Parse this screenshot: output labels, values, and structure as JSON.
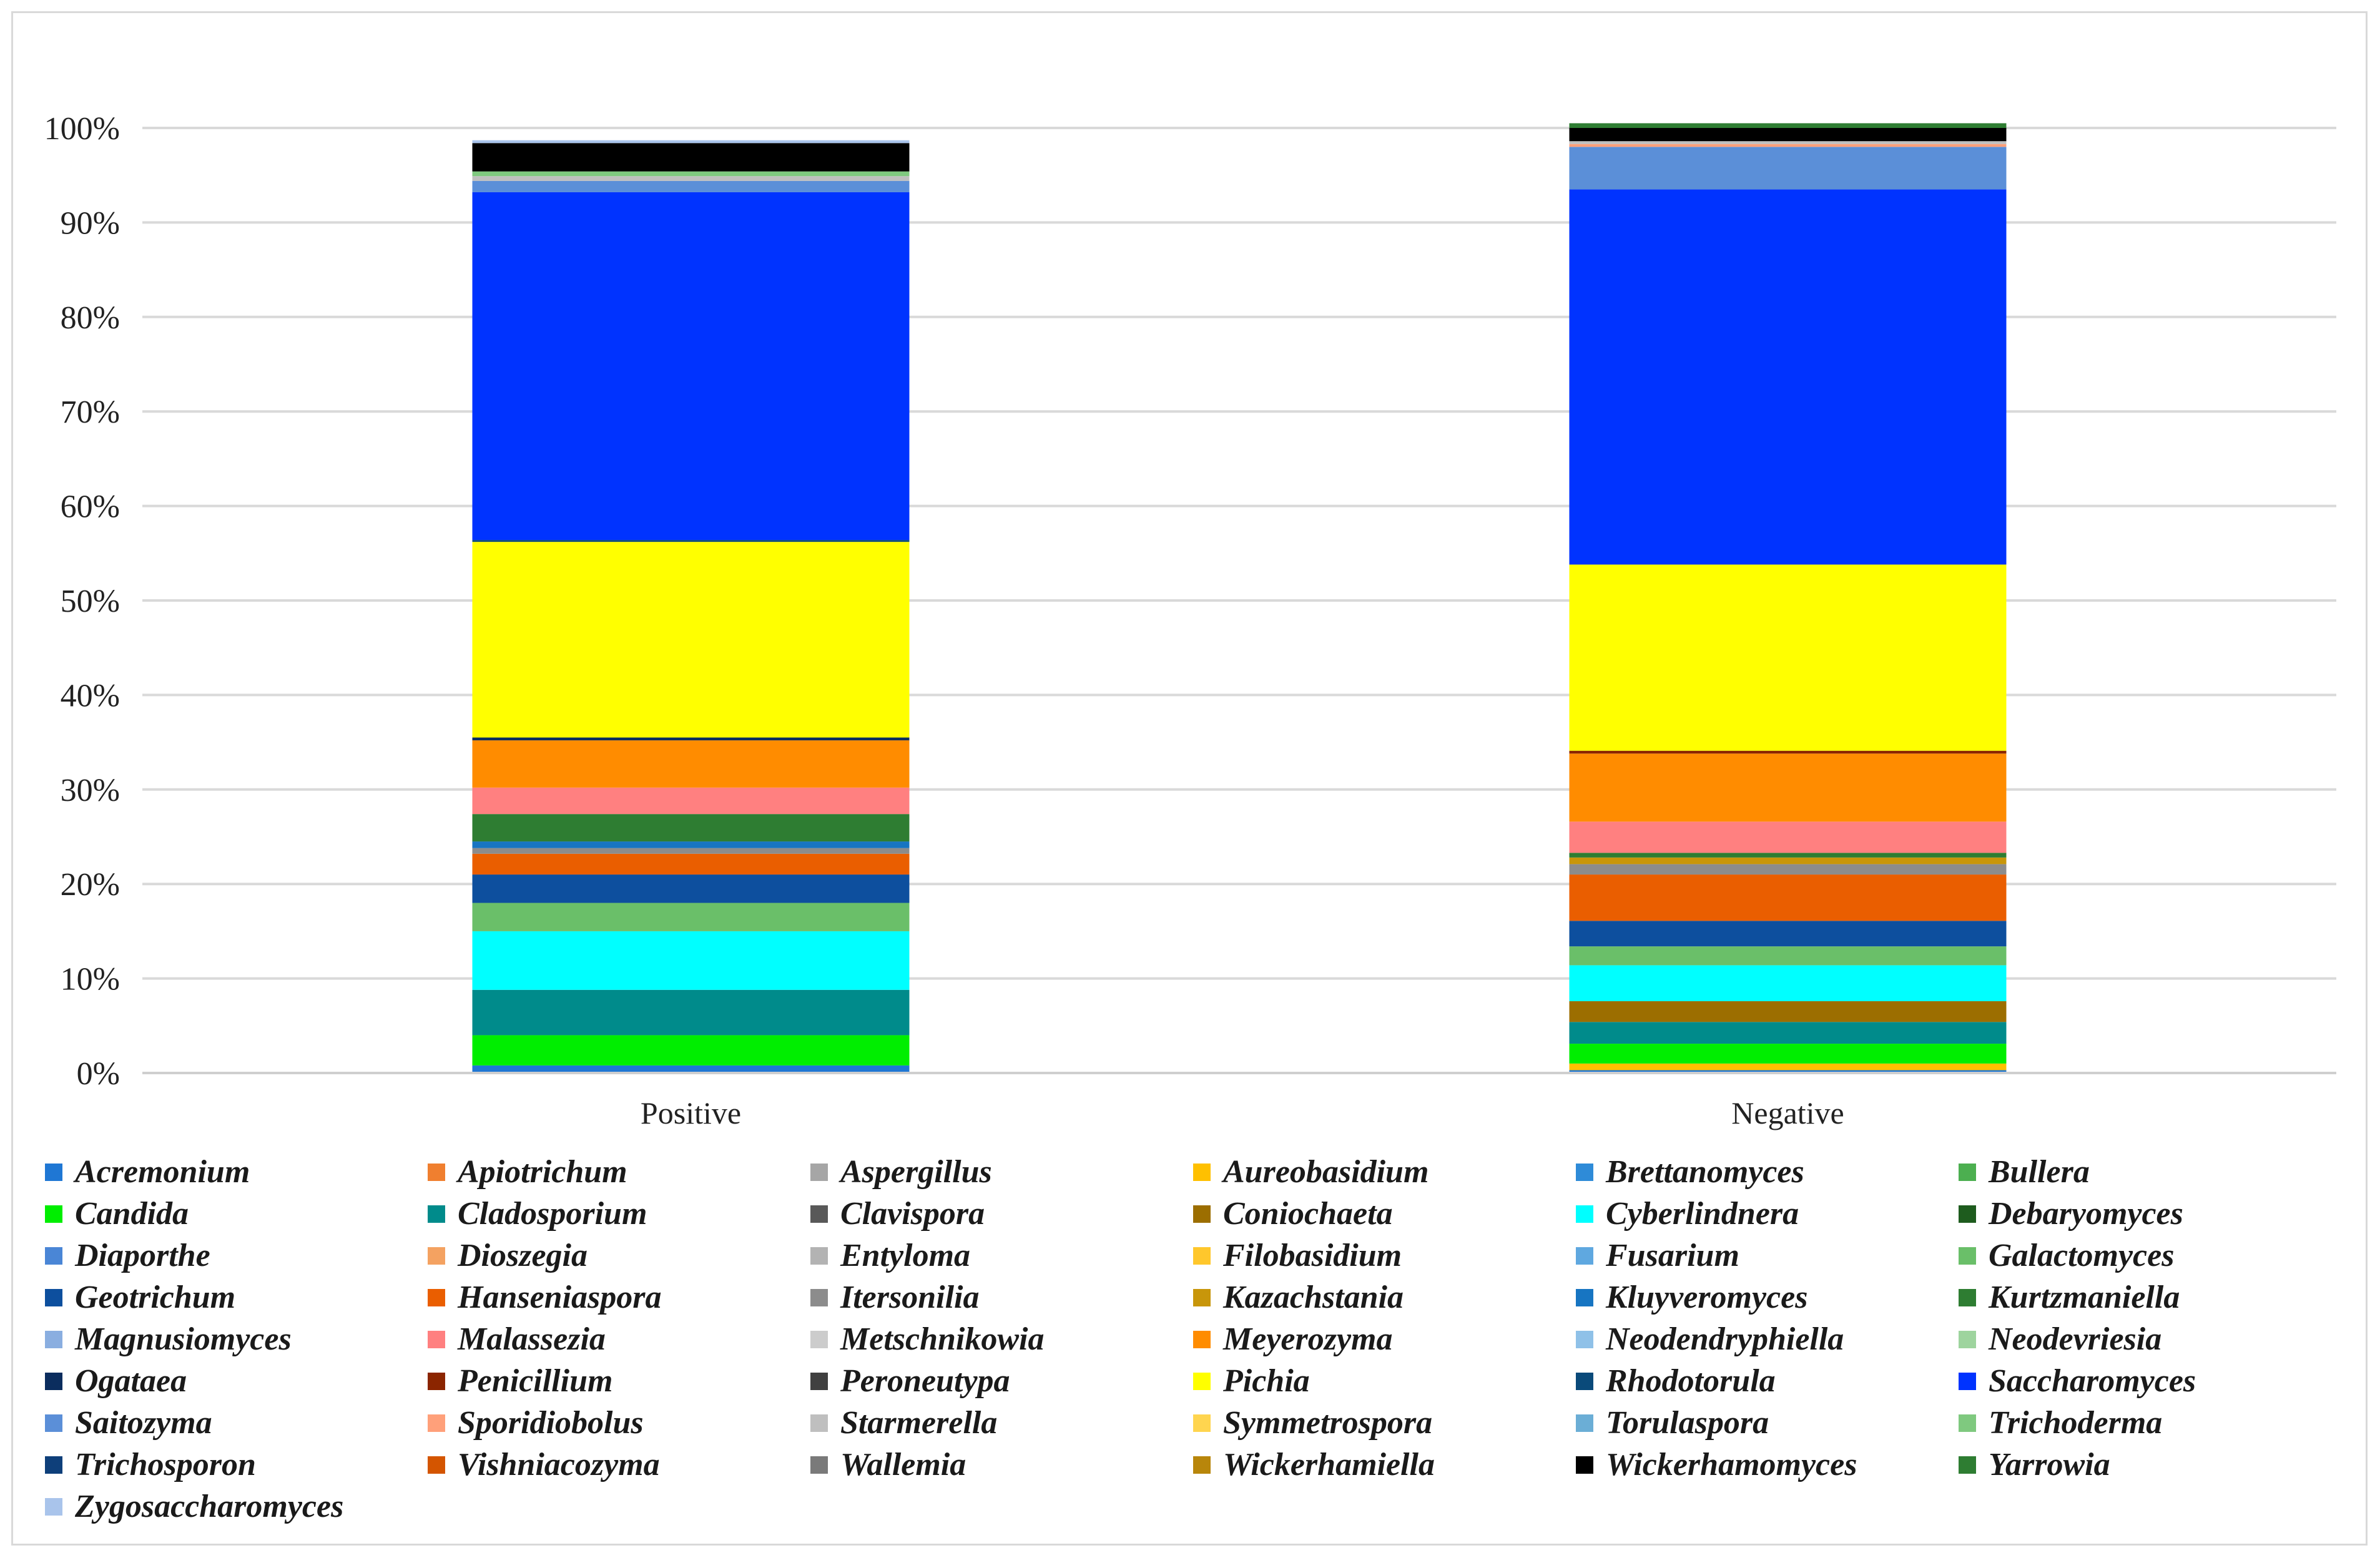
{
  "chart_data": {
    "type": "stacked_bar_percent",
    "title": "",
    "xlabel": "",
    "ylabel": "",
    "ylim": [
      0,
      100
    ],
    "yticks": [
      "0%",
      "10%",
      "20%",
      "30%",
      "40%",
      "50%",
      "60%",
      "70%",
      "80%",
      "90%",
      "100%"
    ],
    "categories": [
      "Positive",
      "Negative"
    ],
    "legend_position": "bottom",
    "series": [
      {
        "name": "Acremonium",
        "color": "#1f77d4",
        "values": [
          0.8,
          0.3
        ]
      },
      {
        "name": "Apiotrichum",
        "color": "#f07f2f",
        "values": [
          0.0,
          0.0
        ]
      },
      {
        "name": "Aspergillus",
        "color": "#a6a6a6",
        "values": [
          0.0,
          0.0
        ]
      },
      {
        "name": "Aureobasidium",
        "color": "#ffc000",
        "values": [
          0.0,
          0.7
        ]
      },
      {
        "name": "Brettanomyces",
        "color": "#2e8bd8",
        "values": [
          0.0,
          0.0
        ]
      },
      {
        "name": "Bullera",
        "color": "#4caf50",
        "values": [
          0.0,
          0.0
        ]
      },
      {
        "name": "Candida",
        "color": "#00ee00",
        "values": [
          3.2,
          2.1
        ]
      },
      {
        "name": "Cladosporium",
        "color": "#008b8b",
        "values": [
          4.8,
          2.3
        ]
      },
      {
        "name": "Clavispora",
        "color": "#595959",
        "values": [
          0.0,
          0.0
        ]
      },
      {
        "name": "Coniochaeta",
        "color": "#9c6e00",
        "values": [
          0.0,
          2.2
        ]
      },
      {
        "name": "Cyberlindnera",
        "color": "#00ffff",
        "values": [
          6.2,
          3.8
        ]
      },
      {
        "name": "Debaryomyces",
        "color": "#1e5c1e",
        "values": [
          0.0,
          0.0
        ]
      },
      {
        "name": "Diaporthe",
        "color": "#4a86d6",
        "values": [
          0.0,
          0.0
        ]
      },
      {
        "name": "Dioszegia",
        "color": "#f4a261",
        "values": [
          0.0,
          0.0
        ]
      },
      {
        "name": "Entyloma",
        "color": "#b3b3b3",
        "values": [
          0.0,
          0.0
        ]
      },
      {
        "name": "Filobasidium",
        "color": "#ffc72c",
        "values": [
          0.0,
          0.0
        ]
      },
      {
        "name": "Fusarium",
        "color": "#5fa8e0",
        "values": [
          0.0,
          0.0
        ]
      },
      {
        "name": "Galactomyces",
        "color": "#6abf69",
        "values": [
          3.0,
          2.0
        ]
      },
      {
        "name": "Geotrichum",
        "color": "#0d4f9e",
        "values": [
          3.0,
          2.7
        ]
      },
      {
        "name": "Hanseniaspora",
        "color": "#ea5e00",
        "values": [
          2.2,
          4.9
        ]
      },
      {
        "name": "Itersonilia",
        "color": "#8c8c8c",
        "values": [
          0.6,
          1.1
        ]
      },
      {
        "name": "Kazachstania",
        "color": "#c8960a",
        "values": [
          0.0,
          0.7
        ]
      },
      {
        "name": "Kluyveromyces",
        "color": "#1775c2",
        "values": [
          0.7,
          0.0
        ]
      },
      {
        "name": "Kurtzmaniella",
        "color": "#2e7d32",
        "values": [
          2.9,
          0.5
        ]
      },
      {
        "name": "Magnusiomyces",
        "color": "#8aaee0",
        "values": [
          0.0,
          0.0
        ]
      },
      {
        "name": "Malassezia",
        "color": "#ff8080",
        "values": [
          2.8,
          3.3
        ]
      },
      {
        "name": "Metschnikowia",
        "color": "#cccccc",
        "values": [
          0.0,
          0.0
        ]
      },
      {
        "name": "Meyerozyma",
        "color": "#ff8c00",
        "values": [
          5.0,
          7.2
        ]
      },
      {
        "name": "Neodendryphiella",
        "color": "#8fc1e8",
        "values": [
          0.0,
          0.0
        ]
      },
      {
        "name": "Neodevriesia",
        "color": "#9ed49e",
        "values": [
          0.0,
          0.0
        ]
      },
      {
        "name": "Ogataea",
        "color": "#0b2d5e",
        "values": [
          0.3,
          0.0
        ]
      },
      {
        "name": "Penicillium",
        "color": "#8b2500",
        "values": [
          0.0,
          0.3
        ]
      },
      {
        "name": "Peroneutypa",
        "color": "#404040",
        "values": [
          0.0,
          0.0
        ]
      },
      {
        "name": "Pichia",
        "color": "#ffff00",
        "values": [
          20.7,
          19.7
        ]
      },
      {
        "name": "Rhodotorula",
        "color": "#0a4a7a",
        "values": [
          0.2,
          0.0
        ]
      },
      {
        "name": "Saccharomyces",
        "color": "#0033ff",
        "values": [
          36.8,
          39.7
        ]
      },
      {
        "name": "Saitozyma",
        "color": "#5b8fd8",
        "values": [
          1.2,
          4.5
        ]
      },
      {
        "name": "Sporidiobolus",
        "color": "#ffa07a",
        "values": [
          0.0,
          0.3
        ]
      },
      {
        "name": "Starmerella",
        "color": "#bfbfbf",
        "values": [
          0.5,
          0.3
        ]
      },
      {
        "name": "Symmetrospora",
        "color": "#ffd54f",
        "values": [
          0.0,
          0.0
        ]
      },
      {
        "name": "Torulaspora",
        "color": "#6baed6",
        "values": [
          0.0,
          0.0
        ]
      },
      {
        "name": "Trichoderma",
        "color": "#7fc97f",
        "values": [
          0.5,
          0.0
        ]
      },
      {
        "name": "Trichosporon",
        "color": "#0e3f7a",
        "values": [
          0.0,
          0.0
        ]
      },
      {
        "name": "Vishniacozyma",
        "color": "#d45500",
        "values": [
          0.0,
          0.0
        ]
      },
      {
        "name": "Wallemia",
        "color": "#7a7a7a",
        "values": [
          0.0,
          0.0
        ]
      },
      {
        "name": "Wickerhamiella",
        "color": "#b8860b",
        "values": [
          0.0,
          0.0
        ]
      },
      {
        "name": "Wickerhamomyces",
        "color": "#000000",
        "values": [
          3.0,
          1.4
        ]
      },
      {
        "name": "Yarrowia",
        "color": "#2e7d32",
        "values": [
          0.0,
          0.5
        ]
      },
      {
        "name": "Zygosaccharomyces",
        "color": "#a9c4eb",
        "values": [
          0.3,
          0.0
        ]
      }
    ]
  }
}
